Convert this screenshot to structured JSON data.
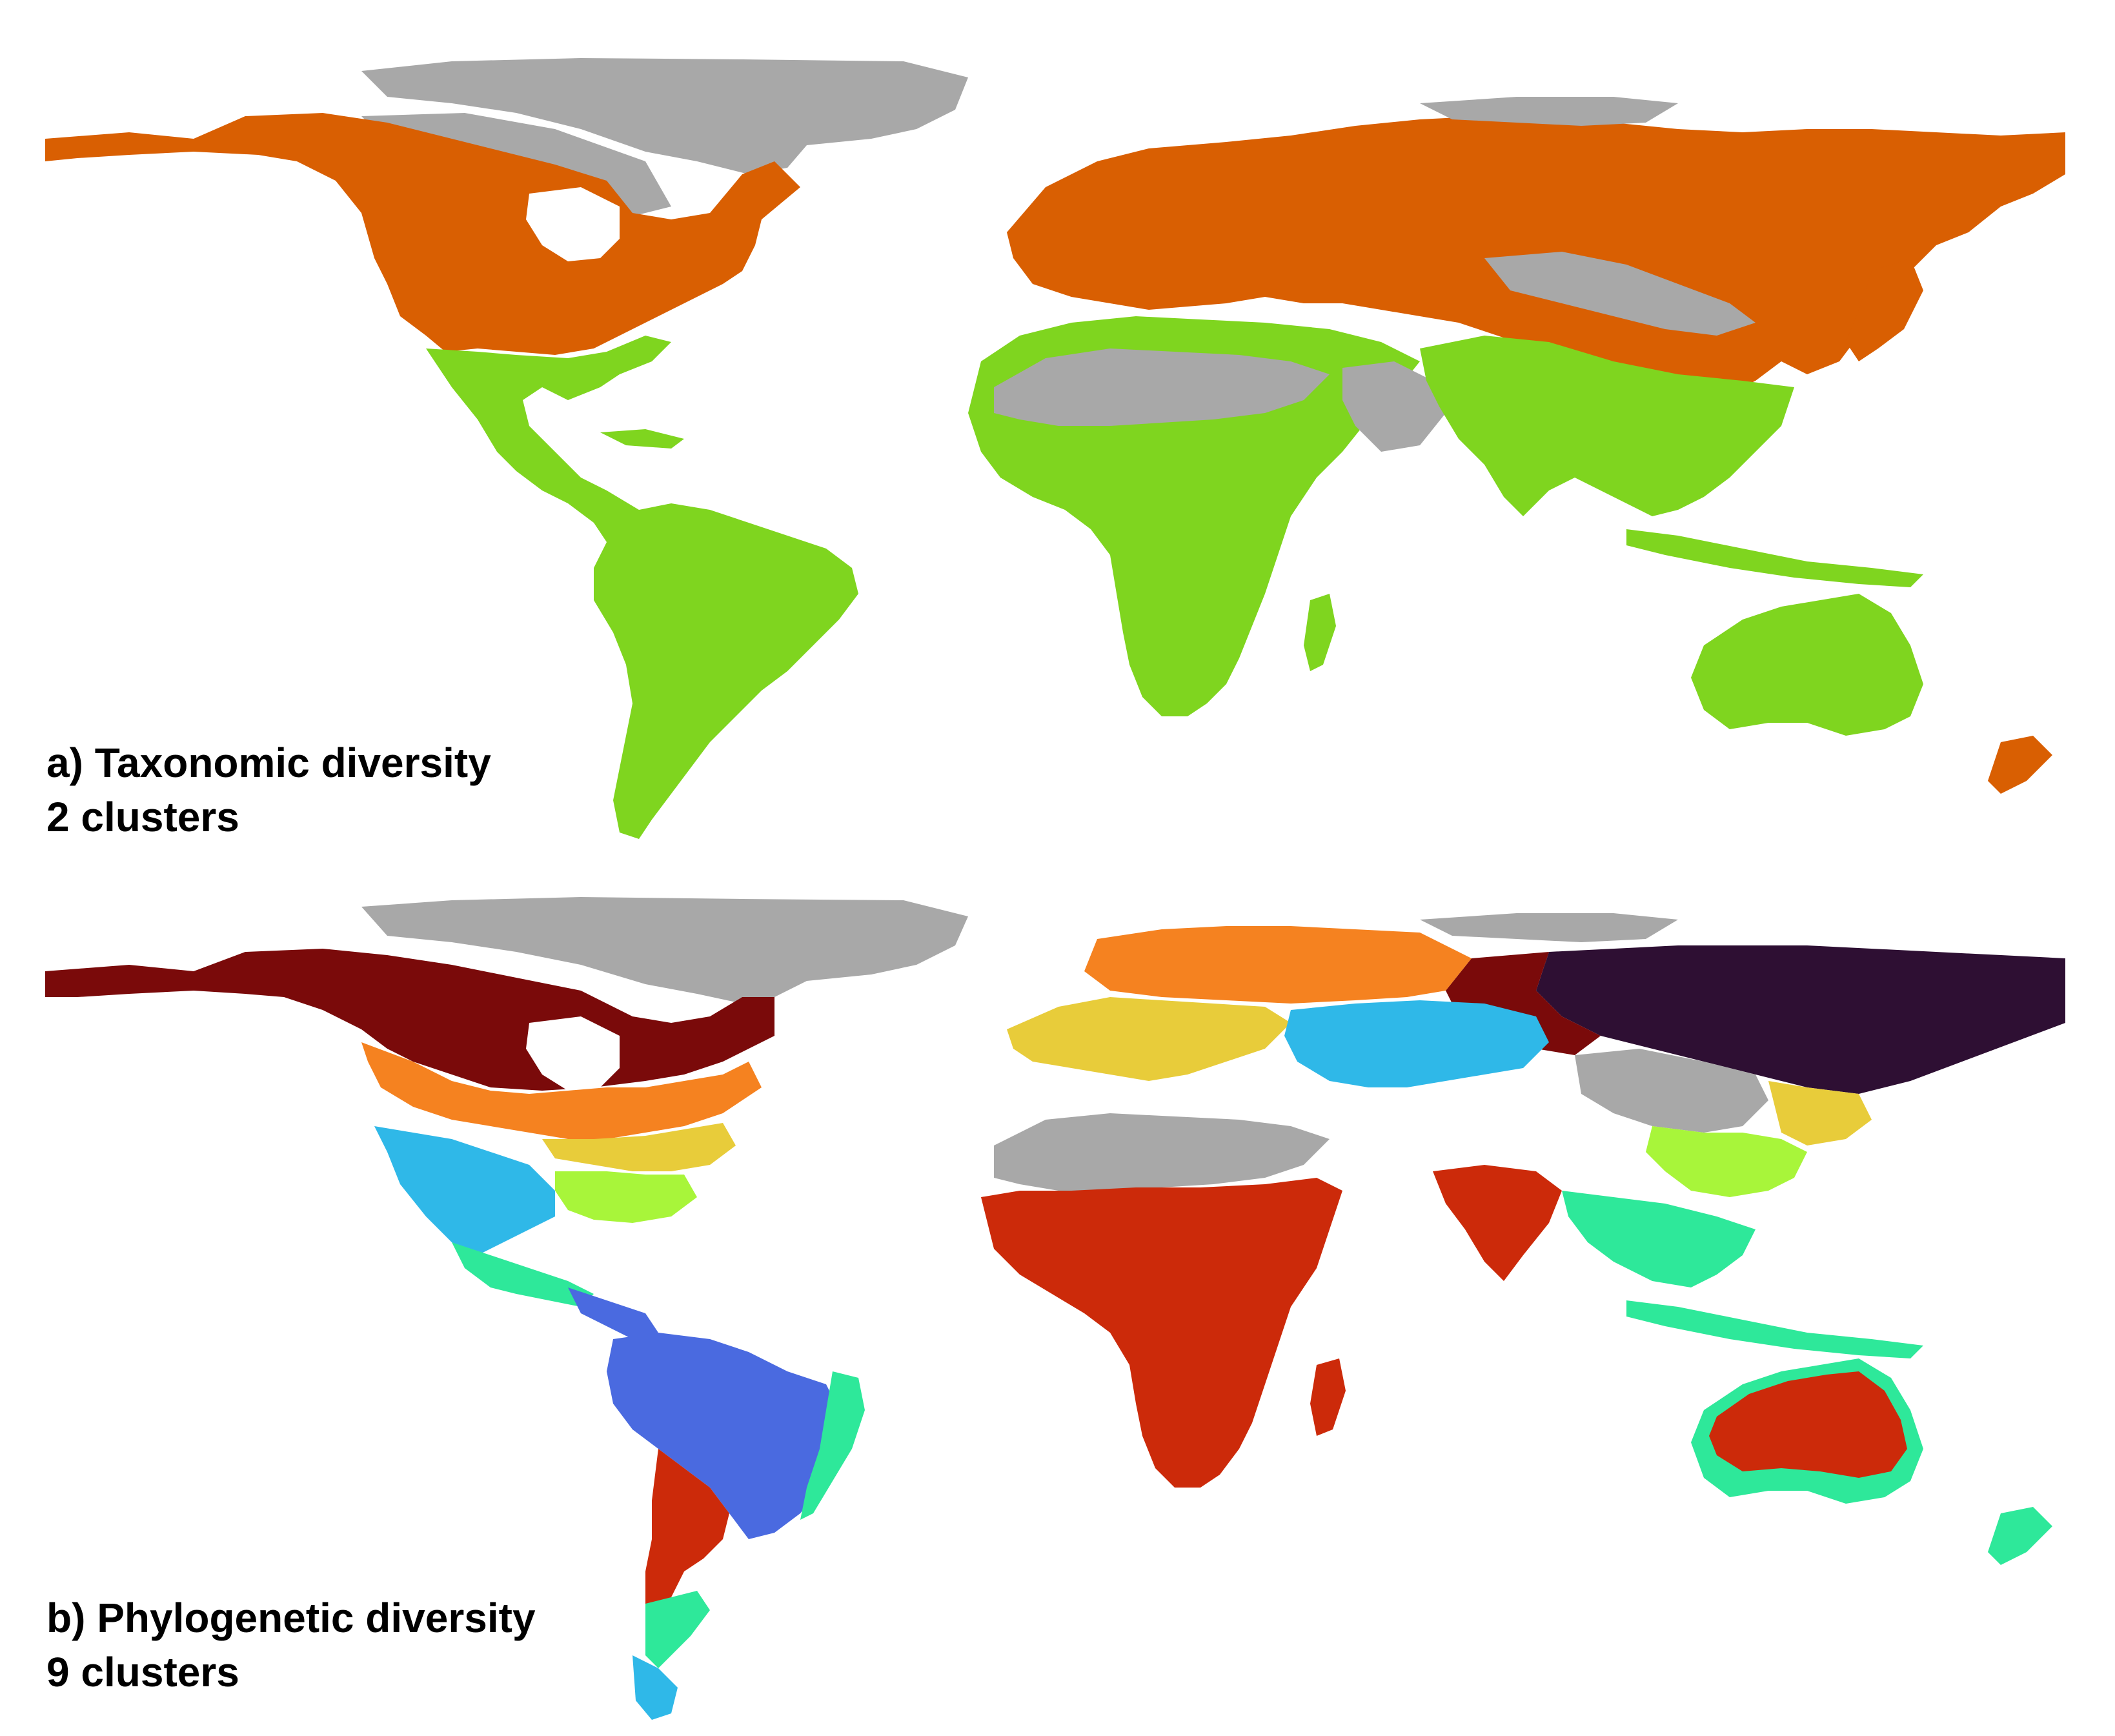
{
  "panels": [
    {
      "label": "a) Taxonomic diversity",
      "clusters_label": "2 clusters",
      "legend_colors": {
        "cluster_north": "#d95f02",
        "cluster_south": "#7fd51f",
        "no_data": "#a8a8a8"
      }
    },
    {
      "label": "b) Phylogenetic diversity",
      "clusters_label": "9 clusters",
      "legend_colors": {
        "boreal_dark_red": "#7a0a0a",
        "deep_purple": "#2e0f33",
        "orange": "#f58220",
        "yellow": "#e8cc3a",
        "sky_blue": "#2fb8e8",
        "lime": "#a8f53a",
        "teal_green": "#2ee89a",
        "royal_blue": "#4a6ae0",
        "red_orange": "#cc2a0a",
        "no_data": "#a8a8a8"
      }
    }
  ]
}
